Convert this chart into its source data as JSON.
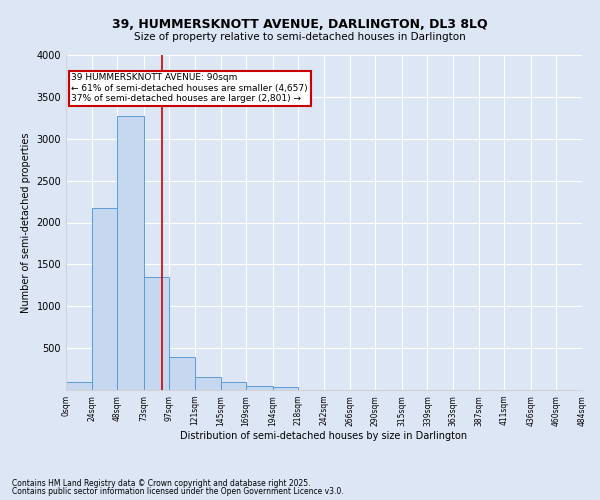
{
  "title_line1": "39, HUMMERSKNOTT AVENUE, DARLINGTON, DL3 8LQ",
  "title_line2": "Size of property relative to semi-detached houses in Darlington",
  "xlabel": "Distribution of semi-detached houses by size in Darlington",
  "ylabel": "Number of semi-detached properties",
  "footnote1": "Contains HM Land Registry data © Crown copyright and database right 2025.",
  "footnote2": "Contains public sector information licensed under the Open Government Licence v3.0.",
  "annotation_title": "39 HUMMERSKNOTT AVENUE: 90sqm",
  "annotation_line2": "← 61% of semi-detached houses are smaller (4,657)",
  "annotation_line3": "37% of semi-detached houses are larger (2,801) →",
  "property_size_sqm": 90,
  "bin_edges": [
    0,
    24,
    48,
    73,
    97,
    121,
    145,
    169,
    194,
    218,
    242,
    266,
    290,
    315,
    339,
    363,
    387,
    411,
    436,
    460,
    484
  ],
  "bar_values": [
    100,
    2175,
    3275,
    1350,
    400,
    150,
    90,
    50,
    40,
    0,
    0,
    0,
    0,
    0,
    0,
    0,
    0,
    0,
    0,
    0
  ],
  "bar_color": "#c5d8f0",
  "bar_edge_color": "#5b9bd5",
  "vline_color": "#cc0000",
  "vline_x": 90,
  "annotation_box_color": "#cc0000",
  "background_color": "#dce6f5",
  "ylim": [
    0,
    4000
  ],
  "yticks": [
    0,
    500,
    1000,
    1500,
    2000,
    2500,
    3000,
    3500,
    4000
  ]
}
